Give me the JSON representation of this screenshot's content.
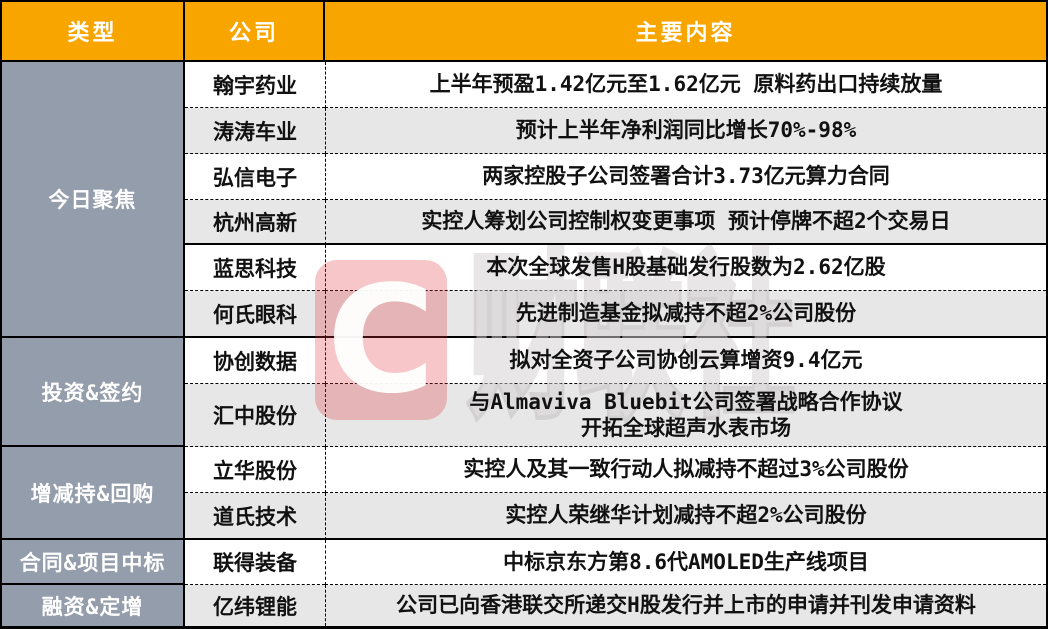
{
  "table": {
    "columns": {
      "type": "类型",
      "company": "公司",
      "content": "主要内容"
    },
    "sections": [
      {
        "category": "今日聚焦",
        "rows": [
          {
            "company": "翰宇药业",
            "content": "上半年预盈1.42亿元至1.62亿元 原料药出口持续放量"
          },
          {
            "company": "涛涛车业",
            "content": "预计上半年净利润同比增长70%-98%"
          },
          {
            "company": "弘信电子",
            "content": "两家控股子公司签署合计3.73亿元算力合同"
          },
          {
            "company": "杭州高新",
            "content": "实控人筹划公司控制权变更事项 预计停牌不超2个交易日"
          },
          {
            "company": "蓝思科技",
            "content": "本次全球发售H股基础发行股数为2.62亿股"
          },
          {
            "company": "何氏眼科",
            "content": "先进制造基金拟减持不超2%公司股份"
          }
        ]
      },
      {
        "category": "投资&签约",
        "rows": [
          {
            "company": "协创数据",
            "content": "拟对全资子公司协创云算增资9.4亿元"
          },
          {
            "company": "汇中股份",
            "content": "与Almaviva Bluebit公司签署战略合作协议\n开拓全球超声水表市场"
          }
        ]
      },
      {
        "category": "增减持&回购",
        "rows": [
          {
            "company": "立华股份",
            "content": "实控人及其一致行动人拟减持不超过3%公司股份"
          },
          {
            "company": "道氏技术",
            "content": "实控人荣继华计划减持不超2%公司股份"
          }
        ]
      },
      {
        "category": "合同&项目中标",
        "rows": [
          {
            "company": "联得装备",
            "content": "中标京东方第8.6代AMOLED生产线项目"
          }
        ]
      },
      {
        "category": "融资&定增",
        "rows": [
          {
            "company": "亿纬锂能",
            "content": "公司已向香港联交所递交H股发行并上市的申请并刊发申请资料"
          }
        ]
      }
    ]
  },
  "watermark": {
    "logo_letter": "C",
    "text": "财联社"
  },
  "colors": {
    "header_bg": "#F8A500",
    "category_bg": "#949DAB",
    "row_alt_bg": "#E7E7E7",
    "border": "#000000",
    "watermark_red": "#E0393F"
  }
}
